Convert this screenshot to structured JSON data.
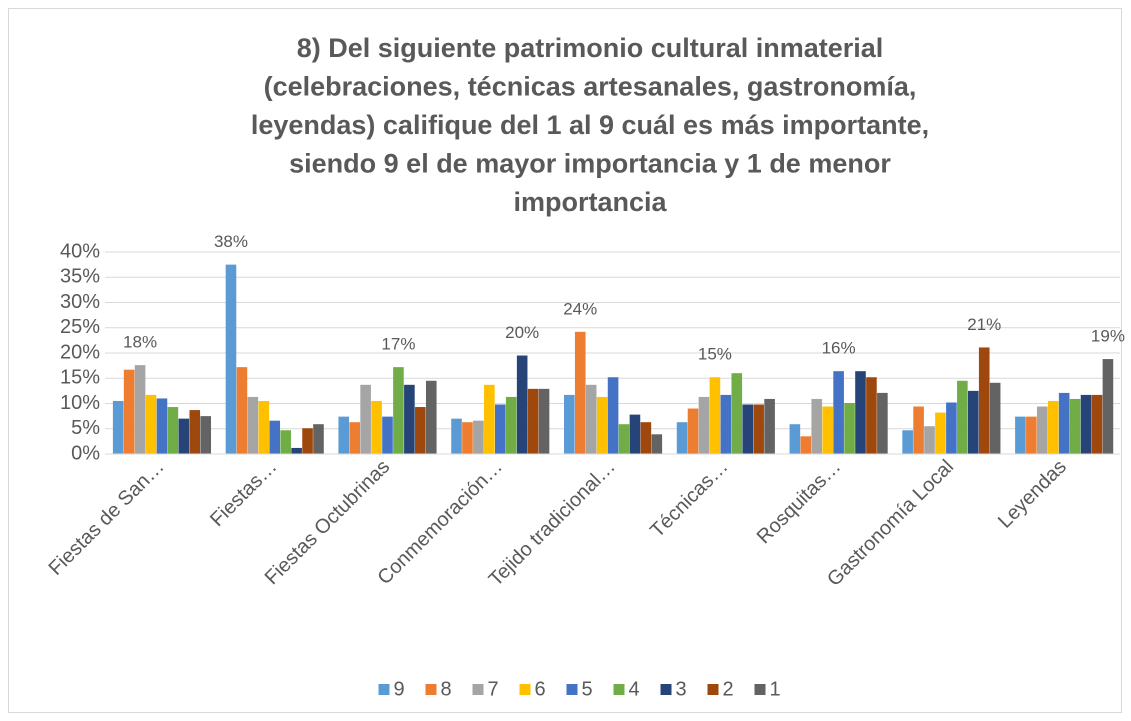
{
  "chart_data": {
    "type": "bar",
    "title": [
      "8) Del siguiente patrimonio cultural inmaterial",
      "(celebraciones, técnicas artesanales, gastronomía,",
      "leyendas) califique del 1 al 9 cuál es más importante,",
      "siendo 9 el de mayor importancia y 1 de menor",
      "importancia"
    ],
    "categories": [
      "Fiestas de San…",
      "Fiestas…",
      "Fiestas Octubrinas",
      "Conmemoración…",
      "Tejido tradicional…",
      "Técnicas…",
      "Rosquitas…",
      "Gastronomía Local",
      "Leyendas"
    ],
    "series": [
      {
        "name": "9",
        "color": "#5b9bd5",
        "values": [
          10.5,
          37.5,
          7.4,
          7.0,
          11.7,
          6.3,
          5.9,
          4.7,
          7.4
        ],
        "value_labels": [
          null,
          "38%",
          null,
          null,
          null,
          null,
          null,
          null,
          null
        ]
      },
      {
        "name": "8",
        "color": "#ed7d31",
        "values": [
          16.7,
          17.2,
          6.3,
          6.3,
          24.2,
          9.0,
          3.5,
          9.4,
          7.4
        ],
        "value_labels": [
          null,
          null,
          null,
          null,
          "24%",
          null,
          null,
          null,
          null
        ]
      },
      {
        "name": "7",
        "color": "#a5a5a5",
        "values": [
          17.6,
          11.3,
          13.7,
          6.6,
          13.7,
          11.3,
          10.9,
          5.5,
          9.4
        ],
        "value_labels": [
          "18%",
          null,
          null,
          null,
          null,
          null,
          null,
          null,
          null
        ]
      },
      {
        "name": "6",
        "color": "#ffc000",
        "values": [
          11.7,
          10.5,
          10.5,
          13.7,
          11.3,
          15.2,
          9.4,
          8.2,
          10.5
        ],
        "value_labels": [
          null,
          null,
          null,
          null,
          null,
          "15%",
          null,
          null,
          null
        ]
      },
      {
        "name": "5",
        "color": "#4472c4",
        "values": [
          11.0,
          6.6,
          7.4,
          9.8,
          15.2,
          11.7,
          16.4,
          10.2,
          12.1
        ],
        "value_labels": [
          null,
          null,
          null,
          null,
          null,
          null,
          "16%",
          null,
          null
        ]
      },
      {
        "name": "4",
        "color": "#70ad47",
        "values": [
          9.3,
          4.7,
          17.2,
          11.3,
          5.9,
          16.0,
          10.1,
          14.5,
          10.9
        ],
        "value_labels": [
          null,
          null,
          "17%",
          null,
          null,
          null,
          null,
          null,
          null
        ]
      },
      {
        "name": "3",
        "color": "#264478",
        "values": [
          7.0,
          1.2,
          13.7,
          19.5,
          7.8,
          9.8,
          16.4,
          12.5,
          11.7
        ],
        "value_labels": [
          null,
          null,
          null,
          "20%",
          null,
          null,
          null,
          null,
          null
        ]
      },
      {
        "name": "2",
        "color": "#9e480e",
        "values": [
          8.7,
          5.1,
          9.3,
          12.9,
          6.3,
          9.8,
          15.2,
          21.1,
          11.7
        ],
        "value_labels": [
          null,
          null,
          null,
          null,
          null,
          null,
          null,
          "21%",
          null
        ]
      },
      {
        "name": "1",
        "color": "#636363",
        "values": [
          7.5,
          5.9,
          14.5,
          12.9,
          3.9,
          10.9,
          12.1,
          14.1,
          18.8
        ],
        "value_labels": [
          null,
          null,
          null,
          null,
          null,
          null,
          null,
          null,
          "19%"
        ]
      }
    ],
    "ylim": [
      0,
      40
    ],
    "yticks": [
      {
        "value": 0,
        "label": "0%"
      },
      {
        "value": 5,
        "label": "5%"
      },
      {
        "value": 10,
        "label": "10%"
      },
      {
        "value": 15,
        "label": "15%"
      },
      {
        "value": 20,
        "label": "20%"
      },
      {
        "value": 25,
        "label": "25%"
      },
      {
        "value": 30,
        "label": "30%"
      },
      {
        "value": 35,
        "label": "35%"
      },
      {
        "value": 40,
        "label": "40%"
      }
    ],
    "grid": true,
    "legend": "bottom"
  }
}
